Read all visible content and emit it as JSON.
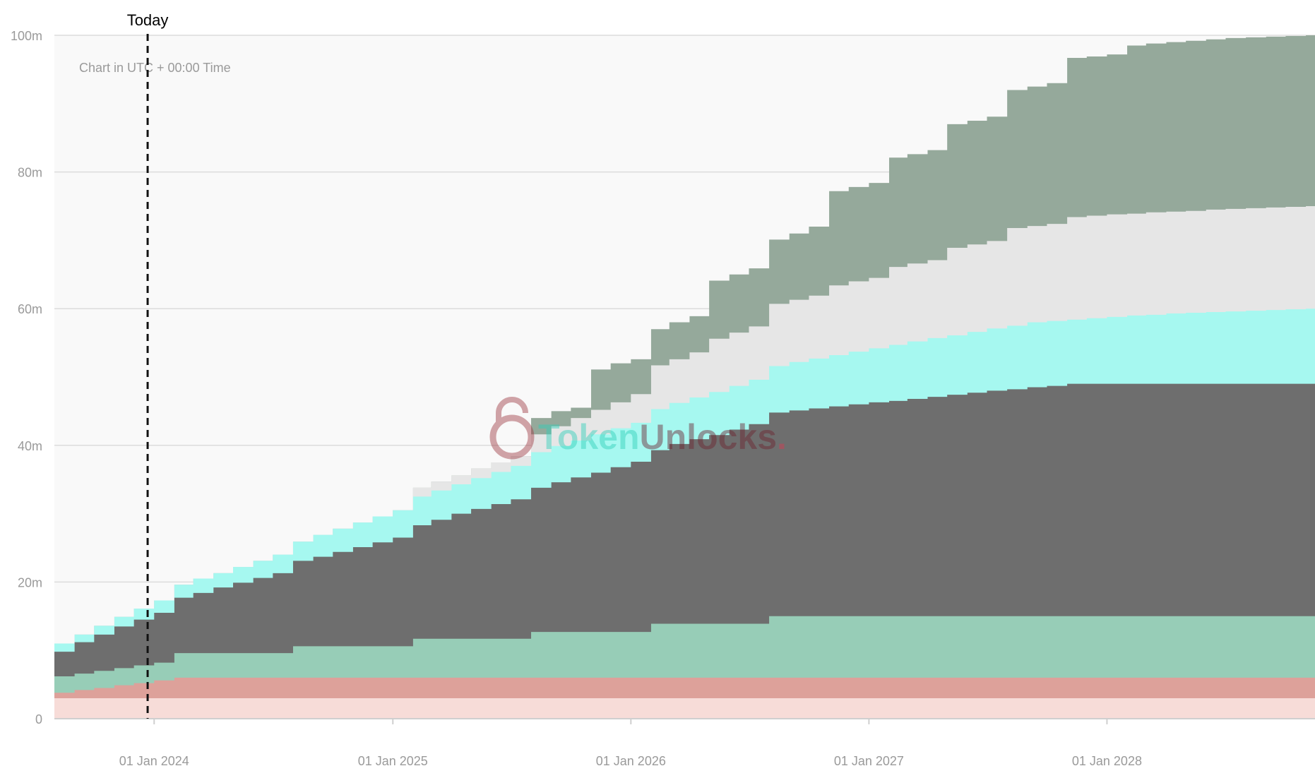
{
  "timezone_note": "Chart in UTC + 00:00 Time",
  "today_label": "Today",
  "watermark": {
    "brand_a": "Token",
    "brand_b": "Unlocks",
    "brand_dot": "."
  },
  "chart_data": {
    "type": "area",
    "stacked": true,
    "step": true,
    "x_axis": {
      "type": "date",
      "range": [
        "2023-08-01",
        "2028-11-15"
      ],
      "ticks": [
        {
          "date": "2024-01-01",
          "label": "01 Jan 2024"
        },
        {
          "date": "2025-01-01",
          "label": "01 Jan 2025"
        },
        {
          "date": "2026-01-01",
          "label": "01 Jan 2026"
        },
        {
          "date": "2027-01-01",
          "label": "01 Jan 2027"
        },
        {
          "date": "2028-01-01",
          "label": "01 Jan 2028"
        }
      ]
    },
    "y_axis": {
      "range": [
        0,
        100000000
      ],
      "ticks": [
        {
          "value": 0,
          "label": "0"
        },
        {
          "value": 20000000,
          "label": "20m"
        },
        {
          "value": 40000000,
          "label": "40m"
        },
        {
          "value": 60000000,
          "label": "60m"
        },
        {
          "value": 80000000,
          "label": "80m"
        },
        {
          "value": 100000000,
          "label": "100m"
        }
      ]
    },
    "grid": true,
    "today_marker": "2023-12-22",
    "dates": [
      "2023-08-01",
      "2023-09-01",
      "2023-10-01",
      "2023-11-01",
      "2023-12-01",
      "2024-01-01",
      "2024-02-01",
      "2024-03-01",
      "2024-04-01",
      "2024-05-01",
      "2024-06-01",
      "2024-07-01",
      "2024-08-01",
      "2024-09-01",
      "2024-10-01",
      "2024-11-01",
      "2024-12-01",
      "2025-01-01",
      "2025-02-01",
      "2025-03-01",
      "2025-04-01",
      "2025-05-01",
      "2025-06-01",
      "2025-07-01",
      "2025-08-01",
      "2025-09-01",
      "2025-10-01",
      "2025-11-01",
      "2025-12-01",
      "2026-01-01",
      "2026-02-01",
      "2026-03-01",
      "2026-04-01",
      "2026-05-01",
      "2026-06-01",
      "2026-07-01",
      "2026-08-01",
      "2026-09-01",
      "2026-10-01",
      "2026-11-01",
      "2026-12-01",
      "2027-01-01",
      "2027-02-01",
      "2027-03-01",
      "2027-04-01",
      "2027-05-01",
      "2027-06-01",
      "2027-07-01",
      "2027-08-01",
      "2027-09-01",
      "2027-10-01",
      "2027-11-01",
      "2027-12-01",
      "2028-01-01",
      "2028-02-01",
      "2028-03-01",
      "2028-04-01",
      "2028-05-01",
      "2028-06-01",
      "2028-07-01",
      "2028-08-01",
      "2028-09-01",
      "2028-10-01",
      "2028-11-01"
    ],
    "series_cumulative": [
      {
        "color": "#f7dcd8",
        "values": [
          3,
          3,
          3,
          3,
          3,
          3,
          3,
          3,
          3,
          3,
          3,
          3,
          3,
          3,
          3,
          3,
          3,
          3,
          3,
          3,
          3,
          3,
          3,
          3,
          3,
          3,
          3,
          3,
          3,
          3,
          3,
          3,
          3,
          3,
          3,
          3,
          3,
          3,
          3,
          3,
          3,
          3,
          3,
          3,
          3,
          3,
          3,
          3,
          3,
          3,
          3,
          3,
          3,
          3,
          3,
          3,
          3,
          3,
          3,
          3,
          3,
          3,
          3,
          3
        ]
      },
      {
        "color": "#dda19a",
        "values": [
          3.8,
          4.2,
          4.5,
          4.9,
          5.2,
          5.6,
          6,
          6,
          6,
          6,
          6,
          6,
          6,
          6,
          6,
          6,
          6,
          6,
          6,
          6,
          6,
          6,
          6,
          6,
          6,
          6,
          6,
          6,
          6,
          6,
          6,
          6,
          6,
          6,
          6,
          6,
          6,
          6,
          6,
          6,
          6,
          6,
          6,
          6,
          6,
          6,
          6,
          6,
          6,
          6,
          6,
          6,
          6,
          6,
          6,
          6,
          6,
          6,
          6,
          6,
          6,
          6,
          6,
          6
        ]
      },
      {
        "color": "#97cdb7",
        "values": [
          6.2,
          6.6,
          7,
          7.4,
          7.8,
          8.2,
          9.6,
          9.6,
          9.6,
          9.6,
          9.6,
          9.6,
          10.6,
          10.6,
          10.6,
          10.6,
          10.6,
          10.6,
          11.7,
          11.7,
          11.7,
          11.7,
          11.7,
          11.7,
          12.7,
          12.7,
          12.7,
          12.7,
          12.7,
          12.7,
          13.9,
          13.9,
          13.9,
          13.9,
          13.9,
          13.9,
          15,
          15,
          15,
          15,
          15,
          15,
          15,
          15,
          15,
          15,
          15,
          15,
          15,
          15,
          15,
          15,
          15,
          15,
          15,
          15,
          15,
          15,
          15,
          15,
          15,
          15,
          15,
          15
        ]
      },
      {
        "color": "#6e6e6e",
        "values": [
          9.8,
          11.2,
          12.3,
          13.5,
          14.5,
          15.5,
          17.7,
          18.4,
          19.2,
          19.9,
          20.6,
          21.3,
          23.1,
          23.7,
          24.4,
          25.1,
          25.8,
          26.5,
          28.3,
          29.1,
          30,
          30.7,
          31.4,
          32.1,
          33.8,
          34.6,
          35.3,
          36,
          36.8,
          37.6,
          39.3,
          40.2,
          40.9,
          41.5,
          42.3,
          43.1,
          44.8,
          45.1,
          45.4,
          45.7,
          46,
          46.3,
          46.5,
          46.8,
          47.1,
          47.4,
          47.7,
          48,
          48.2,
          48.5,
          48.7,
          49,
          49,
          49,
          49,
          49,
          49,
          49,
          49,
          49,
          49,
          49,
          49,
          49
        ]
      },
      {
        "color": "#a6f8f0",
        "values": [
          11,
          12.3,
          13.6,
          14.9,
          16.1,
          17.3,
          19.6,
          20.5,
          21.3,
          22.2,
          23.1,
          24,
          25.9,
          26.9,
          27.8,
          28.7,
          29.6,
          30.5,
          32.5,
          33.4,
          34.3,
          35.2,
          36.1,
          37,
          39,
          39.9,
          40.7,
          41.6,
          42.5,
          43.3,
          45.3,
          46.2,
          47,
          47.8,
          48.7,
          49.6,
          51.6,
          52.2,
          52.7,
          53.2,
          53.7,
          54.2,
          54.7,
          55.2,
          55.7,
          56.1,
          56.6,
          57.1,
          57.5,
          58,
          58.2,
          58.4,
          58.6,
          58.8,
          59,
          59.1,
          59.3,
          59.4,
          59.5,
          59.6,
          59.7,
          59.8,
          59.9,
          60
        ]
      },
      {
        "color": "#e6e6e6",
        "values": [
          11,
          12.3,
          13.6,
          14.9,
          16.1,
          17.3,
          19.6,
          20.5,
          21.3,
          22.2,
          23.1,
          24,
          25.9,
          26.9,
          27.8,
          28.7,
          29.6,
          30.5,
          33.8,
          34.7,
          35.6,
          36.6,
          37.5,
          38.4,
          41.6,
          42.8,
          44,
          45.2,
          46.3,
          47.5,
          51.7,
          52.6,
          53.6,
          55.6,
          56.5,
          57.4,
          60.7,
          61.3,
          61.9,
          63.4,
          64,
          64.5,
          66.1,
          66.6,
          67.1,
          68.9,
          69.4,
          69.9,
          71.8,
          72.1,
          72.4,
          73.4,
          73.6,
          73.8,
          73.9,
          74.1,
          74.2,
          74.3,
          74.5,
          74.6,
          74.7,
          74.8,
          74.9,
          75
        ]
      },
      {
        "color": "#95a99b",
        "values": [
          11,
          12.3,
          13.6,
          14.9,
          16.1,
          17.3,
          19.6,
          20.5,
          21.3,
          22.2,
          23.1,
          24,
          25.9,
          26.9,
          27.8,
          28.7,
          29.6,
          30.5,
          33.8,
          34.7,
          35.6,
          36.6,
          37.5,
          38.4,
          44,
          45,
          45.5,
          51.1,
          52,
          52.6,
          57,
          58,
          58.9,
          64.1,
          65,
          65.9,
          70.1,
          71,
          72,
          77.2,
          77.8,
          78.4,
          82.1,
          82.6,
          83.2,
          87,
          87.5,
          88.1,
          92,
          92.5,
          93,
          96.7,
          96.9,
          97.2,
          98.5,
          98.8,
          99,
          99.2,
          99.4,
          99.6,
          99.7,
          99.8,
          99.9,
          100
        ]
      }
    ]
  }
}
